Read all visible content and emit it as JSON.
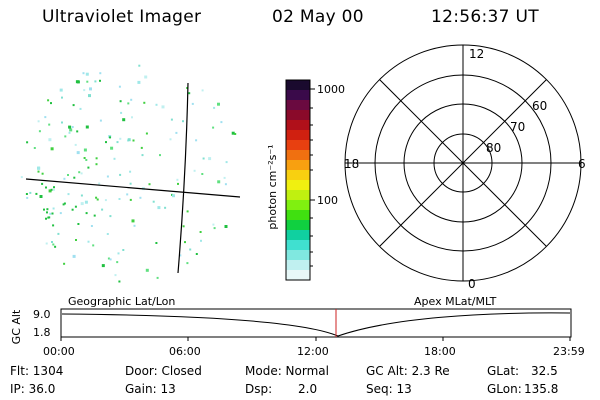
{
  "header": {
    "title": "Ultraviolet Imager",
    "date": "02 May 00",
    "time": "12:56:37 UT"
  },
  "colorbar": {
    "unit_label": "photon cm⁻²s⁻¹",
    "ticks": [
      "1000",
      "100"
    ],
    "colors": [
      "#1a0a2e",
      "#3a0a4a",
      "#6a0a40",
      "#8a0a2a",
      "#b0101a",
      "#d02010",
      "#e84010",
      "#f07010",
      "#f8a010",
      "#f8d010",
      "#f0f010",
      "#c0f010",
      "#80f010",
      "#40e010",
      "#10d040",
      "#10d0a0",
      "#40e0d0",
      "#80e8e0",
      "#c0f0f0",
      "#e8f8f8"
    ]
  },
  "polar_plot": {
    "mlt_labels": [
      "12",
      "18",
      "6",
      "0"
    ],
    "lat_labels": [
      "60",
      "70",
      "80"
    ]
  },
  "image_labels": {
    "left": "Geographic Lat/Lon",
    "right": "Apex MLat/MLT"
  },
  "altitude_strip": {
    "ylabel": "GC Alt",
    "ticks": [
      "9.0",
      "1.8"
    ],
    "x_ticks": [
      "00:00",
      "06:00",
      "12:00",
      "18:00",
      "23:59"
    ],
    "marker_color": "#cc2222"
  },
  "info": {
    "flt": "Flt: 1304",
    "ip": "IP: 36.0",
    "door": "Door: Closed",
    "gain": "Gain: 13",
    "mode": "Mode: Normal",
    "dsp_label": "Dsp:",
    "dsp_value": "2.0",
    "gc_alt": "GC Alt: 2.3 Re",
    "seq": "Seq: 13",
    "glat_label": "GLat:",
    "glat_value": "32.5",
    "glon_label": "GLon:",
    "glon_value": "135.8"
  }
}
